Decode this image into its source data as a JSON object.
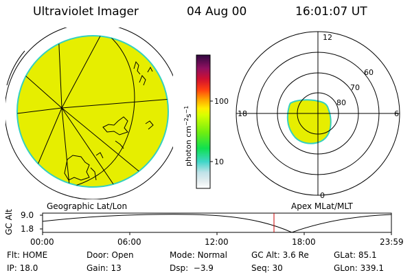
{
  "header": {
    "instrument": "Ultraviolet Imager",
    "date": "04 Aug 00",
    "time": "16:01:07 UT"
  },
  "colors": {
    "aurora_fill": "#e6ee00",
    "aurora_edge": "#33d0c0",
    "line": "#000000",
    "cursor": "#cc0000"
  },
  "colorbar": {
    "label": "photon cm",
    "sup1": "−2",
    "mid": "s",
    "sup2": "−1",
    "tick_high": "100",
    "tick_low": "10"
  },
  "polar": {
    "mlt_top": "12",
    "mlt_left": "18",
    "mlt_right": "6",
    "mlt_bottom": "0",
    "lat_60": "60",
    "lat_70": "70",
    "lat_80": "80"
  },
  "panels": {
    "left_caption": "Geographic Lat/Lon",
    "right_caption": "Apex MLat/MLT"
  },
  "altplot": {
    "ylabel": "GC Alt",
    "y_high": "9.0",
    "y_low": "1.8",
    "x_ticks": [
      "00:00",
      "06:00",
      "12:00",
      "18:00",
      "23:59"
    ]
  },
  "status": {
    "row1": [
      {
        "key": "Flt:",
        "val": "HOME"
      },
      {
        "key": "Door:",
        "val": "Open"
      },
      {
        "key": "Mode:",
        "val": "Normal"
      },
      {
        "key": "GC Alt:",
        "val": "3.6 Re"
      },
      {
        "key": "GLat:",
        "val": "85.1"
      }
    ],
    "row2": [
      {
        "key": "IP:",
        "val": "18.0"
      },
      {
        "key": "Gain:",
        "val": "13"
      },
      {
        "key": "Dsp:",
        "val": "−3.9"
      },
      {
        "key": "Seq:",
        "val": "30"
      },
      {
        "key": "GLon:",
        "val": "339.1"
      }
    ]
  }
}
